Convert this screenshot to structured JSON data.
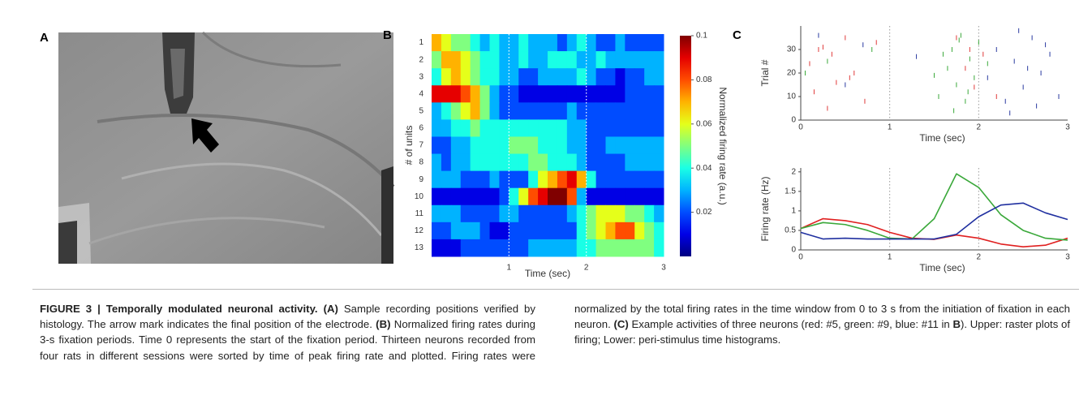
{
  "panel_labels": [
    "A",
    "B",
    "C"
  ],
  "chart_data": [
    {
      "type": "heatmap",
      "x_label": "Time (sec)",
      "y_label": "# of units",
      "rows": [
        "1",
        "2",
        "3",
        "4",
        "5",
        "6",
        "7",
        "8",
        "9",
        "10",
        "11",
        "12",
        "13"
      ],
      "xlim": [
        0,
        3
      ],
      "xticks": [
        1,
        2,
        3
      ],
      "grid": true,
      "colormap": "jet",
      "values": [
        [
          0.07,
          0.06,
          0.05,
          0.05,
          0.04,
          0.03,
          0.04,
          0.03,
          0.03,
          0.04,
          0.03,
          0.03,
          0.03,
          0.02,
          0.03,
          0.04,
          0.03,
          0.02,
          0.02,
          0.03,
          0.02,
          0.02,
          0.02,
          0.02
        ],
        [
          0.05,
          0.07,
          0.07,
          0.06,
          0.05,
          0.04,
          0.04,
          0.03,
          0.03,
          0.04,
          0.03,
          0.03,
          0.04,
          0.04,
          0.04,
          0.03,
          0.03,
          0.04,
          0.03,
          0.03,
          0.03,
          0.03,
          0.03,
          0.03
        ],
        [
          0.04,
          0.06,
          0.07,
          0.06,
          0.05,
          0.04,
          0.04,
          0.03,
          0.03,
          0.02,
          0.02,
          0.03,
          0.03,
          0.03,
          0.03,
          0.04,
          0.03,
          0.02,
          0.02,
          0.01,
          0.02,
          0.02,
          0.03,
          0.03
        ],
        [
          0.09,
          0.09,
          0.09,
          0.08,
          0.07,
          0.05,
          0.03,
          0.02,
          0.02,
          0.01,
          0.01,
          0.01,
          0.01,
          0.01,
          0.01,
          0.01,
          0.01,
          0.01,
          0.01,
          0.01,
          0.02,
          0.02,
          0.02,
          0.02
        ],
        [
          0.03,
          0.04,
          0.05,
          0.06,
          0.07,
          0.05,
          0.03,
          0.02,
          0.02,
          0.02,
          0.02,
          0.02,
          0.02,
          0.02,
          0.03,
          0.02,
          0.02,
          0.02,
          0.02,
          0.02,
          0.02,
          0.02,
          0.02,
          0.02
        ],
        [
          0.03,
          0.03,
          0.04,
          0.04,
          0.05,
          0.04,
          0.04,
          0.04,
          0.04,
          0.04,
          0.04,
          0.04,
          0.04,
          0.04,
          0.03,
          0.03,
          0.02,
          0.02,
          0.02,
          0.02,
          0.02,
          0.02,
          0.02,
          0.02
        ],
        [
          0.02,
          0.02,
          0.03,
          0.03,
          0.04,
          0.04,
          0.04,
          0.04,
          0.05,
          0.05,
          0.05,
          0.04,
          0.04,
          0.04,
          0.03,
          0.03,
          0.02,
          0.02,
          0.03,
          0.03,
          0.03,
          0.03,
          0.03,
          0.03
        ],
        [
          0.03,
          0.02,
          0.03,
          0.03,
          0.04,
          0.04,
          0.04,
          0.04,
          0.04,
          0.04,
          0.05,
          0.05,
          0.04,
          0.04,
          0.04,
          0.03,
          0.02,
          0.02,
          0.02,
          0.02,
          0.03,
          0.03,
          0.03,
          0.03
        ],
        [
          0.03,
          0.03,
          0.03,
          0.02,
          0.02,
          0.02,
          0.03,
          0.02,
          0.02,
          0.02,
          0.04,
          0.06,
          0.07,
          0.08,
          0.09,
          0.07,
          0.04,
          0.02,
          0.02,
          0.02,
          0.02,
          0.02,
          0.02,
          0.02
        ],
        [
          0.01,
          0.01,
          0.01,
          0.01,
          0.01,
          0.01,
          0.01,
          0.02,
          0.04,
          0.06,
          0.08,
          0.09,
          0.1,
          0.1,
          0.08,
          0.03,
          0.01,
          0.01,
          0.01,
          0.01,
          0.01,
          0.01,
          0.01,
          0.01
        ],
        [
          0.03,
          0.03,
          0.03,
          0.02,
          0.02,
          0.02,
          0.02,
          0.03,
          0.03,
          0.02,
          0.02,
          0.02,
          0.02,
          0.02,
          0.03,
          0.04,
          0.05,
          0.06,
          0.06,
          0.06,
          0.05,
          0.05,
          0.04,
          0.03
        ],
        [
          0.02,
          0.02,
          0.03,
          0.03,
          0.03,
          0.02,
          0.01,
          0.01,
          0.02,
          0.02,
          0.02,
          0.02,
          0.02,
          0.02,
          0.02,
          0.04,
          0.05,
          0.06,
          0.07,
          0.08,
          0.08,
          0.06,
          0.05,
          0.04
        ],
        [
          0.01,
          0.01,
          0.01,
          0.02,
          0.02,
          0.02,
          0.02,
          0.02,
          0.02,
          0.02,
          0.03,
          0.03,
          0.03,
          0.03,
          0.03,
          0.04,
          0.04,
          0.05,
          0.05,
          0.05,
          0.05,
          0.05,
          0.05,
          0.04
        ]
      ],
      "colorbar": {
        "label": "Normalized firing rate (a.u.)",
        "lim": [
          0,
          0.1
        ],
        "ticks": [
          0.02,
          0.04,
          0.06,
          0.08,
          0.1
        ]
      }
    },
    {
      "type": "raster",
      "x_label": "Time (sec)",
      "y_label": "Trial #",
      "xlim": [
        0,
        3
      ],
      "xticks": [
        0,
        1,
        2,
        3
      ],
      "ylim": [
        0,
        40
      ],
      "yticks": [
        0,
        10,
        20,
        30
      ],
      "grid": true,
      "series": [
        {
          "color": "#e03a3a",
          "x": [
            0.15,
            0.2,
            0.35,
            0.5,
            0.6,
            0.72,
            0.4,
            0.1,
            0.85,
            1.75,
            1.85,
            1.95,
            2.05,
            0.3,
            0.55,
            1.9,
            2.2,
            0.25
          ],
          "y": [
            12,
            30,
            28,
            35,
            20,
            8,
            16,
            24,
            33,
            35,
            22,
            14,
            28,
            5,
            18,
            30,
            10,
            31
          ]
        },
        {
          "color": "#3aa83a",
          "x": [
            0.05,
            0.3,
            1.55,
            1.65,
            1.7,
            1.75,
            1.8,
            1.85,
            1.9,
            1.95,
            2.0,
            1.6,
            1.72,
            1.88,
            0.8,
            2.1,
            1.5,
            1.78
          ],
          "y": [
            20,
            25,
            10,
            22,
            30,
            15,
            36,
            8,
            26,
            18,
            33,
            28,
            4,
            12,
            30,
            24,
            19,
            34
          ]
        },
        {
          "color": "#2a3aa0",
          "x": [
            0.2,
            0.7,
            2.1,
            2.2,
            2.3,
            2.4,
            2.5,
            2.6,
            2.7,
            2.8,
            2.9,
            2.35,
            2.55,
            2.75,
            1.3,
            2.45,
            2.65,
            0.5
          ],
          "y": [
            36,
            32,
            18,
            30,
            8,
            25,
            14,
            35,
            20,
            28,
            10,
            3,
            22,
            32,
            27,
            38,
            6,
            15
          ]
        }
      ]
    },
    {
      "type": "line",
      "x_label": "Time (sec)",
      "y_label": "Firing rate (Hz)",
      "xlim": [
        0,
        3
      ],
      "xticks": [
        0,
        1,
        2,
        3
      ],
      "ylim": [
        0,
        2.1
      ],
      "yticks": [
        0,
        0.5,
        1,
        1.5,
        2
      ],
      "grid": true,
      "x": [
        0,
        0.25,
        0.5,
        0.75,
        1,
        1.25,
        1.5,
        1.75,
        2,
        2.25,
        2.5,
        2.75,
        3
      ],
      "series": [
        {
          "color": "#e02020",
          "values": [
            0.55,
            0.8,
            0.75,
            0.65,
            0.45,
            0.3,
            0.27,
            0.38,
            0.3,
            0.15,
            0.08,
            0.12,
            0.3
          ]
        },
        {
          "color": "#3aa83a",
          "values": [
            0.55,
            0.7,
            0.65,
            0.5,
            0.3,
            0.28,
            0.8,
            1.95,
            1.6,
            0.9,
            0.5,
            0.3,
            0.25
          ]
        },
        {
          "color": "#2030a0",
          "values": [
            0.45,
            0.28,
            0.3,
            0.28,
            0.28,
            0.28,
            0.28,
            0.4,
            0.85,
            1.15,
            1.2,
            0.95,
            0.78
          ]
        }
      ]
    }
  ],
  "caption": [
    {
      "text": "FIGURE 3 | Temporally modulated neuronal activity.",
      "bold": true
    },
    {
      "text": "(A)",
      "bold": true
    },
    {
      "text": "Sample recording positions verified by histology. The arrow mark indicates the final position of the electrode.",
      "bold": false
    },
    {
      "text": "(B)",
      "bold": true
    },
    {
      "text": "Normalized firing rates during 3-s fixation periods. Time 0 represents the start of the fixation period. Thirteen neurons recorded from four rats in different sessions were sorted by time of peak firing rate and plotted. Firing rates were normalized by the total firing rates in the time window from 0 to 3 s from the initiation of fixation in each neuron.",
      "bold": false
    },
    {
      "text": "(C)",
      "bold": true
    },
    {
      "text": "Example activities of three neurons (red: #5, green: #9, blue: #11 in",
      "bold": false
    },
    {
      "text": "B",
      "bold": true
    },
    {
      "text": "). Upper: raster plots of firing; Lower: peri-stimulus time histograms.",
      "bold": false
    }
  ]
}
